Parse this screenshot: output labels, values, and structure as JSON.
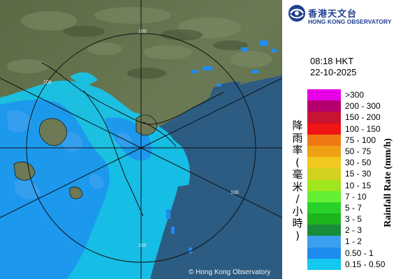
{
  "map": {
    "copyright": "© Hong Kong Observatory",
    "range_labels": [
      "100",
      "100",
      "100",
      "100"
    ]
  },
  "header": {
    "org_name_zh": "香港天文台",
    "org_name_en": "HONG KONG OBSERVATORY",
    "time": "08:18 HKT",
    "date": "22-10-2025"
  },
  "legend": {
    "axis_label_zh": "降雨率(毫米/小時)",
    "axis_label_en": "Rainfall Rate (mm/h)",
    "items": [
      {
        "label": ">300",
        "color": "#e600e6"
      },
      {
        "label": "200 - 300",
        "color": "#b4006e"
      },
      {
        "label": "150 - 200",
        "color": "#c81432"
      },
      {
        "label": "100 - 150",
        "color": "#f01414"
      },
      {
        "label": "75 - 100",
        "color": "#f07814"
      },
      {
        "label": "50 - 75",
        "color": "#f0a014"
      },
      {
        "label": "30 - 50",
        "color": "#f0c81e"
      },
      {
        "label": "15 - 30",
        "color": "#d2d21e"
      },
      {
        "label": "10 - 15",
        "color": "#a0e61e"
      },
      {
        "label": "7 - 10",
        "color": "#64f032"
      },
      {
        "label": "5 - 7",
        "color": "#28d228"
      },
      {
        "label": "3 - 5",
        "color": "#1eb41e"
      },
      {
        "label": "2 - 3",
        "color": "#198c3c"
      },
      {
        "label": "1 - 2",
        "color": "#3ca0f0"
      },
      {
        "label": "0.50 - 1",
        "color": "#1e8cf0"
      },
      {
        "label": "0.15 - 0.50",
        "color": "#14c8f0"
      }
    ]
  }
}
